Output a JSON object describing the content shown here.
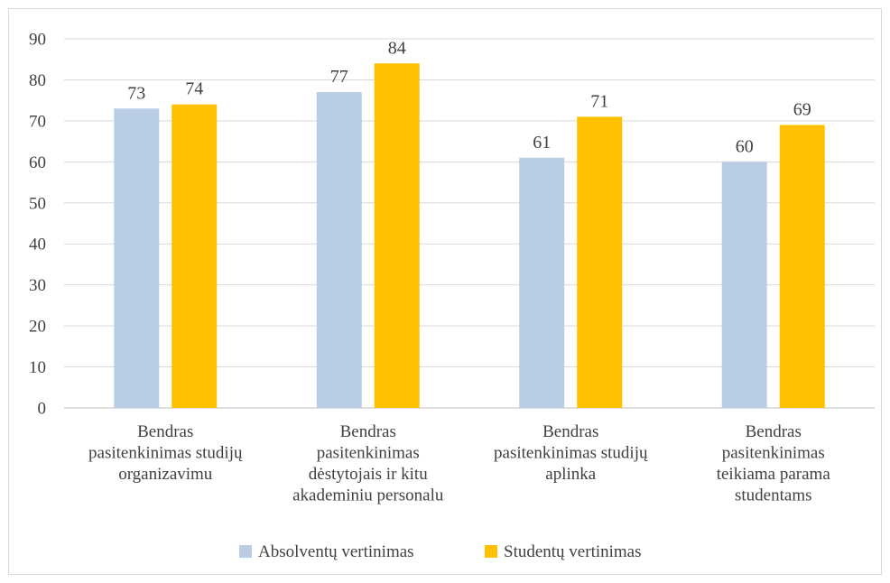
{
  "chart_data": {
    "type": "bar",
    "categories": [
      [
        "Bendras",
        "pasitenkinimas studijų",
        "organizavimu"
      ],
      [
        "Bendras",
        "pasitenkinimas",
        "dėstytojais ir kitu",
        "akademiniu personalu"
      ],
      [
        "Bendras",
        "pasitenkinimas studijų",
        "aplinka"
      ],
      [
        "Bendras",
        "pasitenkinimas",
        "teikiama parama",
        "studentams"
      ]
    ],
    "series": [
      {
        "name": "Absolventų vertinimas",
        "values": [
          73,
          77,
          61,
          60
        ],
        "color": "#b9cde5"
      },
      {
        "name": "Studentų vertinimas",
        "values": [
          74,
          84,
          71,
          69
        ],
        "color": "#ffc000"
      }
    ],
    "ylim": [
      0,
      90
    ],
    "yticks": [
      "0",
      "10",
      "20",
      "30",
      "40",
      "50",
      "60",
      "70",
      "80",
      "90"
    ],
    "grid": true,
    "legend_position": "bottom",
    "data_labels": true
  }
}
